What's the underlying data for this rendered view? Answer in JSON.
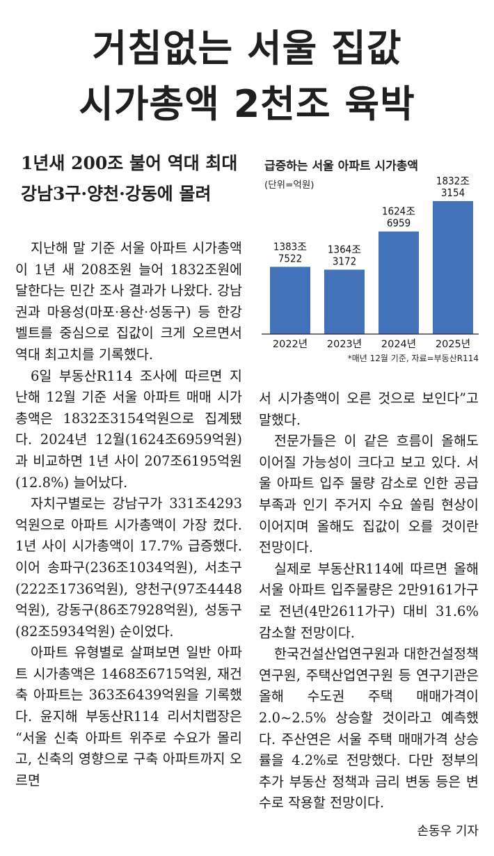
{
  "headline": {
    "line1": "거침없는 서울 집값",
    "line2": "시가총액 2천조 육박"
  },
  "subheadline": {
    "line1": "1년새 200조 불어 역대 최대",
    "line2": "강남3구·양천·강동에 몰려"
  },
  "body_left": [
    "지난해 말 기준 서울 아파트 시가총액이 1년 새 208조원 늘어 1832조원에 달한다는 민간 조사 결과가 나왔다. 강남권과 마용성(마포·용산·성동구) 등 한강벨트를 중심으로 집값이 크게 오르면서 역대 최고치를 기록했다.",
    "6일 부동산R114 조사에 따르면 지난해 12월 기준 서울 아파트 매매 시가총액은 1832조3154억원으로 집계됐다. 2024년 12월(1624조6959억원)과 비교하면 1년 사이 207조6195억원(12.8%) 늘어났다.",
    "자치구별로는 강남구가 331조4293억원으로 아파트 시가총액이 가장 컸다. 1년 사이 시가총액이 17.7% 급증했다. 이어 송파구(236조1034억원), 서초구(222조1736억원), 양천구(97조4448억원), 강동구(86조7928억원), 성동구(82조5934억원) 순이었다.",
    "아파트 유형별로 살펴보면 일반 아파트 시가총액은 1468조6715억원, 재건축 아파트는 363조6439억원을 기록했다. 윤지해 부동산R114 리서치랩장은 “서울 신축 아파트 위주로 수요가 몰리고, 신축의 영향으로 구축 아파트까지 오르면"
  ],
  "body_right": [
    "서 시가총액이 오른 것으로 보인다”고 말했다.",
    "전문가들은 이 같은 흐름이 올해도 이어질 가능성이 크다고 보고 있다. 서울 아파트 입주 물량 감소로 인한 공급 부족과 인기 주거지 수요 쏠림 현상이 이어지며 올해도 집값이 오를 것이란 전망이다.",
    "실제로 부동산R114에 따르면 올해 서울 아파트 입주물량은 2만9161가구로 전년(4만2611가구) 대비 31.6% 감소할 전망이다.",
    "한국건설산업연구원과 대한건설정책연구원, 주택산업연구원 등 연구기관은 올해 수도권 주택 매매가격이 2.0~2.5% 상승할 것이라고 예측했다. 주산연은 서울 주택 매매가격 상승률을 4.2%로 전망했다. 다만 정부의 추가 부동산 정책과 금리 변동 등은 변수로 작용할 전망이다."
  ],
  "byline": "손동우 기자",
  "chart_data": {
    "type": "bar",
    "title": "급증하는 서울 아파트 시가총액",
    "unit": "(단위=억원)",
    "categories": [
      "2022년",
      "2023년",
      "2024년",
      "2025년"
    ],
    "values": [
      13837522,
      13643172,
      16246959,
      18323154
    ],
    "value_labels": [
      [
        "1383조",
        "7522"
      ],
      [
        "1364조",
        "3172"
      ],
      [
        "1624조",
        "6959"
      ],
      [
        "1832조",
        "3154"
      ]
    ],
    "bar_color": "#4472b8",
    "source": "*매년 12월 기준, 자료=부동산R114",
    "grid": false,
    "legend": "none"
  }
}
